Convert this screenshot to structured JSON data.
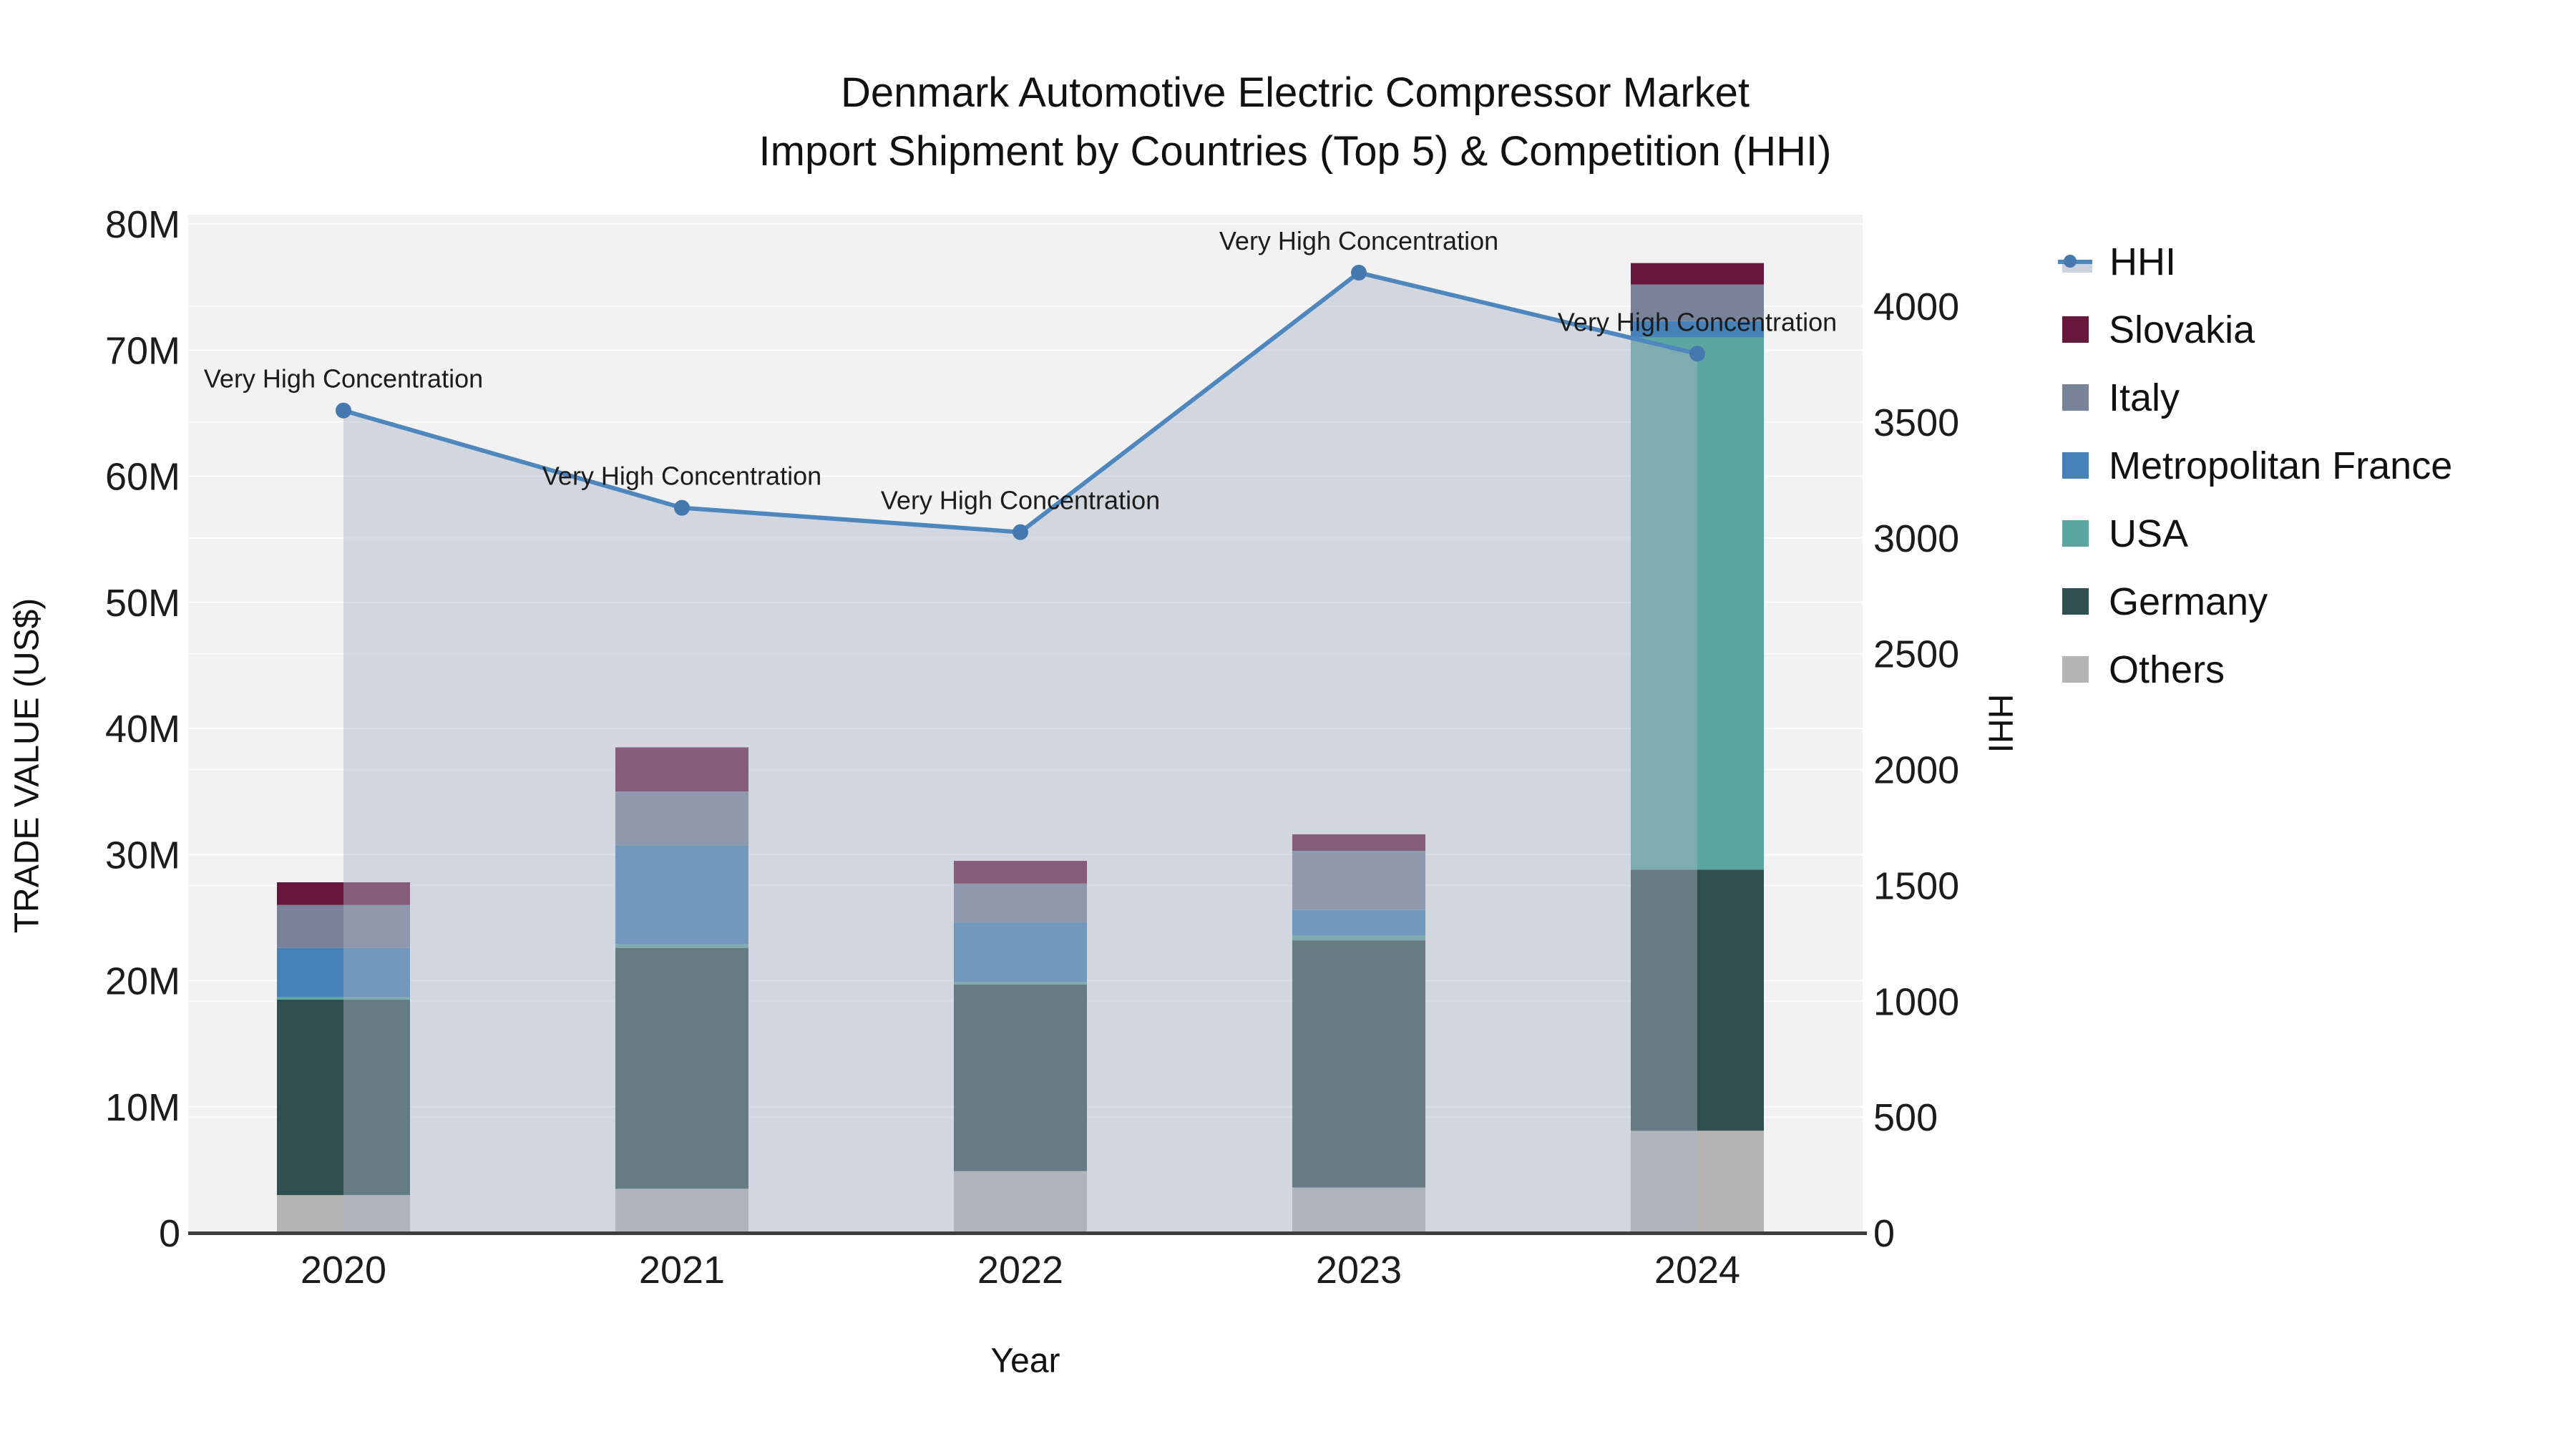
{
  "title": {
    "line1": "Denmark Automotive Electric Compressor Market",
    "line2": "Import Shipment by Countries (Top 5) & Competition (HHI)"
  },
  "axes": {
    "x": {
      "title": "Year",
      "ticks": [
        "2020",
        "2021",
        "2022",
        "2023",
        "2024"
      ]
    },
    "y_left": {
      "title": "TRADE VALUE (US$)",
      "ticks": [
        "0",
        "10M",
        "20M",
        "30M",
        "40M",
        "50M",
        "60M",
        "70M",
        "80M"
      ],
      "max_millions": 80
    },
    "y_right": {
      "title": "HHI",
      "ticks": [
        "0",
        "500",
        "1000",
        "1500",
        "2000",
        "2500",
        "3000",
        "3500",
        "4000"
      ],
      "max": 4000
    }
  },
  "legend": {
    "items": [
      {
        "label": "HHI",
        "type": "line"
      },
      {
        "label": "Slovakia",
        "type": "swatch",
        "color": "#67173C"
      },
      {
        "label": "Italy",
        "type": "swatch",
        "color": "#78839A"
      },
      {
        "label": "Metropolitan France",
        "type": "swatch",
        "color": "#4682B8"
      },
      {
        "label": "USA",
        "type": "swatch",
        "color": "#5CA6A1"
      },
      {
        "label": "Germany",
        "type": "swatch",
        "color": "#2E4F4D"
      },
      {
        "label": "Others",
        "type": "swatch",
        "color": "#B4B4B4"
      }
    ]
  },
  "chart_data": {
    "type": "combo-stacked-bar-line",
    "categories": [
      "2020",
      "2021",
      "2022",
      "2023",
      "2024"
    ],
    "bar_value_unit": "million US$",
    "series": [
      {
        "name": "Others",
        "color": "#B4B4B4",
        "values": [
          3.0,
          3.5,
          4.9,
          3.6,
          8.1
        ]
      },
      {
        "name": "Germany",
        "color": "#2E4F4D",
        "values": [
          15.5,
          19.1,
          14.8,
          19.6,
          20.7
        ]
      },
      {
        "name": "USA",
        "color": "#5CA6A1",
        "values": [
          0.2,
          0.3,
          0.2,
          0.4,
          42.2
        ]
      },
      {
        "name": "Metropolitan France",
        "color": "#4682B8",
        "values": [
          3.9,
          7.8,
          4.7,
          2.0,
          1.3
        ]
      },
      {
        "name": "Italy",
        "color": "#78839A",
        "values": [
          3.4,
          4.3,
          3.1,
          4.7,
          2.9
        ]
      },
      {
        "name": "Slovakia",
        "color": "#67173C",
        "values": [
          1.8,
          3.5,
          1.8,
          1.3,
          1.7
        ]
      }
    ],
    "stack_order": "bottom_to_top",
    "totals_millions": [
      27.8,
      38.5,
      29.5,
      31.6,
      76.9
    ],
    "line_series": {
      "name": "HHI",
      "color": "#4E86BE",
      "marker_color": "#4478AE",
      "area_fill": "rgba(170,180,198,0.45)",
      "values": [
        3550,
        3130,
        3025,
        4145,
        3795
      ]
    },
    "annotations": [
      "Very High Concentration",
      "Very High Concentration",
      "Very High Concentration",
      "Very High Concentration",
      "Very High Concentration"
    ],
    "y_left_range_millions": [
      0,
      80
    ],
    "y_right_range": [
      0,
      4000
    ],
    "grid": true,
    "plot_bg": "#f2f2f2",
    "grid_color": "#ffffff",
    "baseline_color": "#3d3d3d",
    "legend_position": "right"
  }
}
